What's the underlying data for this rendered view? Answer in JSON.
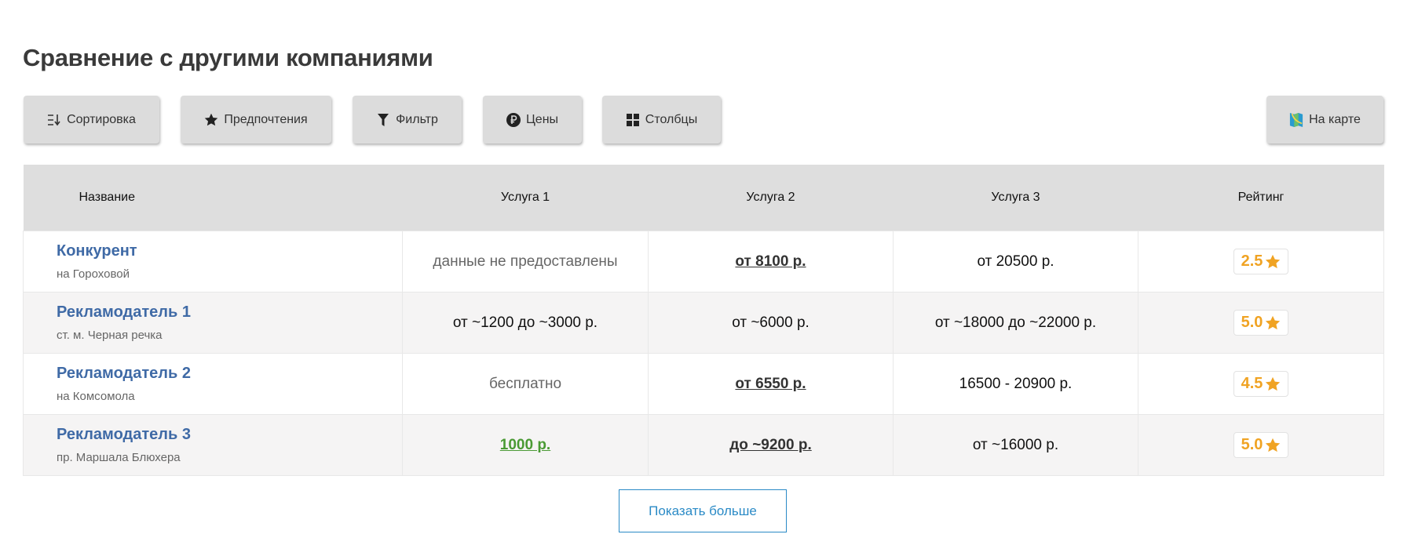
{
  "title": "Сравнение с другими компаниями",
  "toolbar": {
    "sort": {
      "label": "Сортировка",
      "icon": "sort-icon"
    },
    "prefs": {
      "label": "Предпочтения",
      "icon": "star-icon"
    },
    "filter": {
      "label": "Фильтр",
      "icon": "filter-icon"
    },
    "prices": {
      "label": "Цены",
      "icon": "ruble-icon"
    },
    "columns": {
      "label": "Столбцы",
      "icon": "grid-icon"
    },
    "map": {
      "label": "На карте",
      "icon": "map-icon"
    }
  },
  "table": {
    "headers": [
      "Название",
      "Услуга 1",
      "Услуга 2",
      "Услуга 3",
      "Рейтинг"
    ],
    "rows": [
      {
        "name": "Конкурент",
        "address": "на Гороховой",
        "s1": "данные не предоставлены",
        "s2": "от 8100 р.",
        "s3": "от 20500 р.",
        "rating": "2.5"
      },
      {
        "name": "Рекламодатель 1",
        "address": "ст. м. Черная речка",
        "s1": "от ~1200 до ~3000 р.",
        "s2": "от ~6000 р.",
        "s3": "от ~18000 до ~22000 р.",
        "rating": "5.0"
      },
      {
        "name": "Рекламодатель 2",
        "address": "на Комсомола",
        "s1": "бесплатно",
        "s2": "от 6550 р.",
        "s3": "16500 - 20900 р.",
        "rating": "4.5"
      },
      {
        "name": "Рекламодатель 3",
        "address": "пр. Маршала Блюхера",
        "s1": "1000 р.",
        "s2": "до ~9200 р.",
        "s3": "от ~16000 р.",
        "rating": "5.0"
      }
    ]
  },
  "show_more": "Показать больше",
  "colors": {
    "link": "#3f6aa6",
    "rating": "#f0a323",
    "green": "#4a9a34",
    "accent": "#2a8ac6"
  }
}
